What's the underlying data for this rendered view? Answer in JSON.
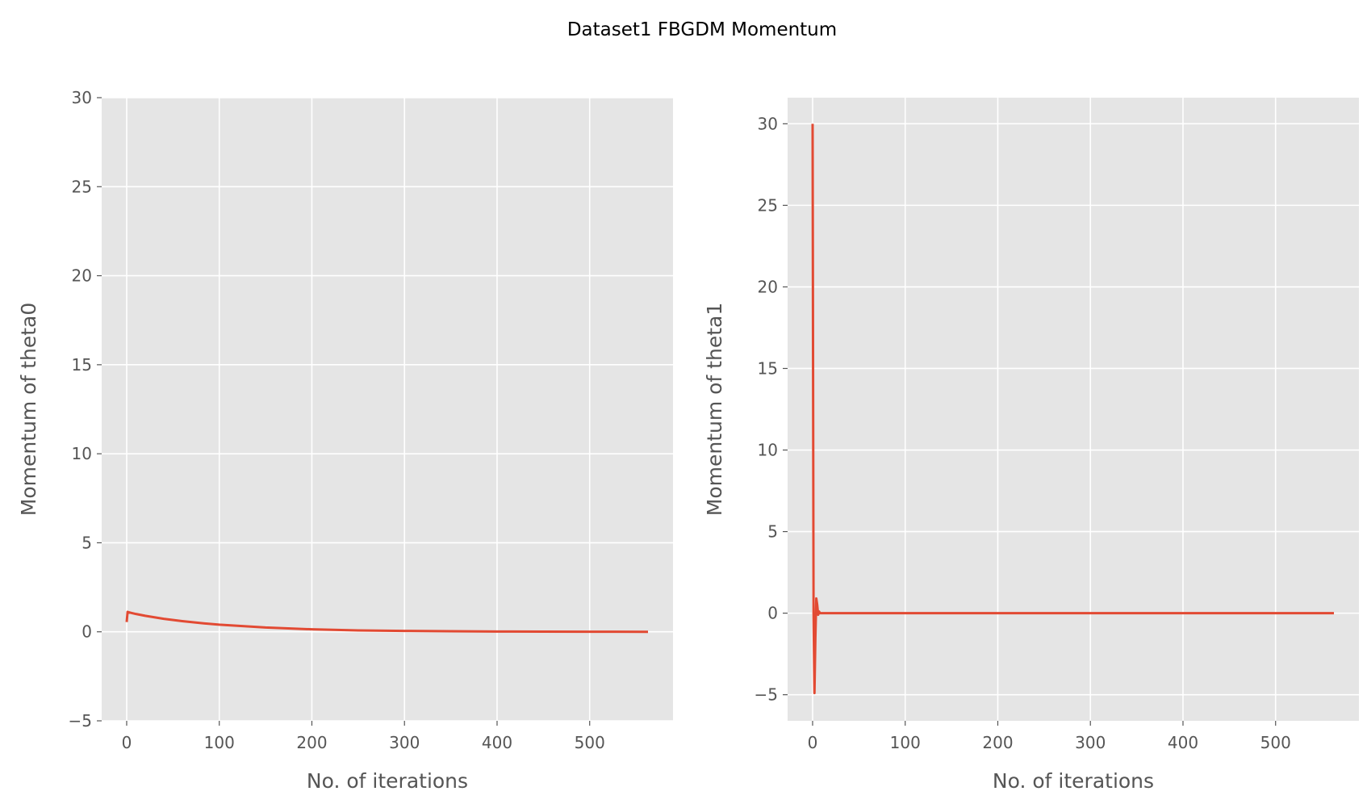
{
  "figure_title": "Dataset1 FBGDM Momentum",
  "colors": {
    "line": "#E24A33",
    "plot_background": "#E5E5E5",
    "grid": "#FFFFFF",
    "text": "#555555",
    "title": "#000000"
  },
  "chart_data": [
    {
      "type": "line",
      "title": "",
      "xlabel": "No. of iterations",
      "ylabel": "Momentum of theta0",
      "xlim": [
        -27,
        590
      ],
      "ylim": [
        -5,
        30
      ],
      "xticks": [
        0,
        100,
        200,
        300,
        400,
        500
      ],
      "yticks": [
        -5,
        0,
        5,
        10,
        15,
        20,
        25,
        30
      ],
      "ytick_labels": [
        "−5",
        "0",
        "5",
        "10",
        "15",
        "20",
        "25",
        "30"
      ],
      "grid": true,
      "legend": "none",
      "series": [
        {
          "x": [
            0,
            1,
            2,
            5,
            10,
            20,
            40,
            60,
            80,
            100,
            150,
            200,
            250,
            300,
            350,
            400,
            450,
            500,
            563
          ],
          "y": [
            0.55,
            1.12,
            1.1,
            1.06,
            1.0,
            0.9,
            0.73,
            0.6,
            0.49,
            0.4,
            0.24,
            0.14,
            0.08,
            0.05,
            0.03,
            0.015,
            0.008,
            0.004,
            0.0
          ]
        }
      ]
    },
    {
      "type": "line",
      "title": "",
      "xlabel": "No. of iterations",
      "ylabel": "Momentum of theta1",
      "xlim": [
        -27,
        590
      ],
      "ylim": [
        -6.6,
        31.6
      ],
      "xticks": [
        0,
        100,
        200,
        300,
        400,
        500
      ],
      "yticks": [
        -5,
        0,
        5,
        10,
        15,
        20,
        25,
        30
      ],
      "ytick_labels": [
        "−5",
        "0",
        "5",
        "10",
        "15",
        "20",
        "25",
        "30"
      ],
      "grid": true,
      "legend": "none",
      "series": [
        {
          "x": [
            0,
            1,
            2,
            3,
            4,
            5,
            6,
            7,
            8,
            10,
            20,
            50,
            100,
            200,
            300,
            400,
            500,
            563
          ],
          "y": [
            30,
            0.0,
            -4.9,
            -1.5,
            0.9,
            0.5,
            -0.1,
            0.1,
            0.0,
            0.0,
            0.0,
            0.0,
            0.0,
            0.0,
            0.0,
            0.0,
            0.0,
            0.0
          ]
        }
      ]
    }
  ]
}
